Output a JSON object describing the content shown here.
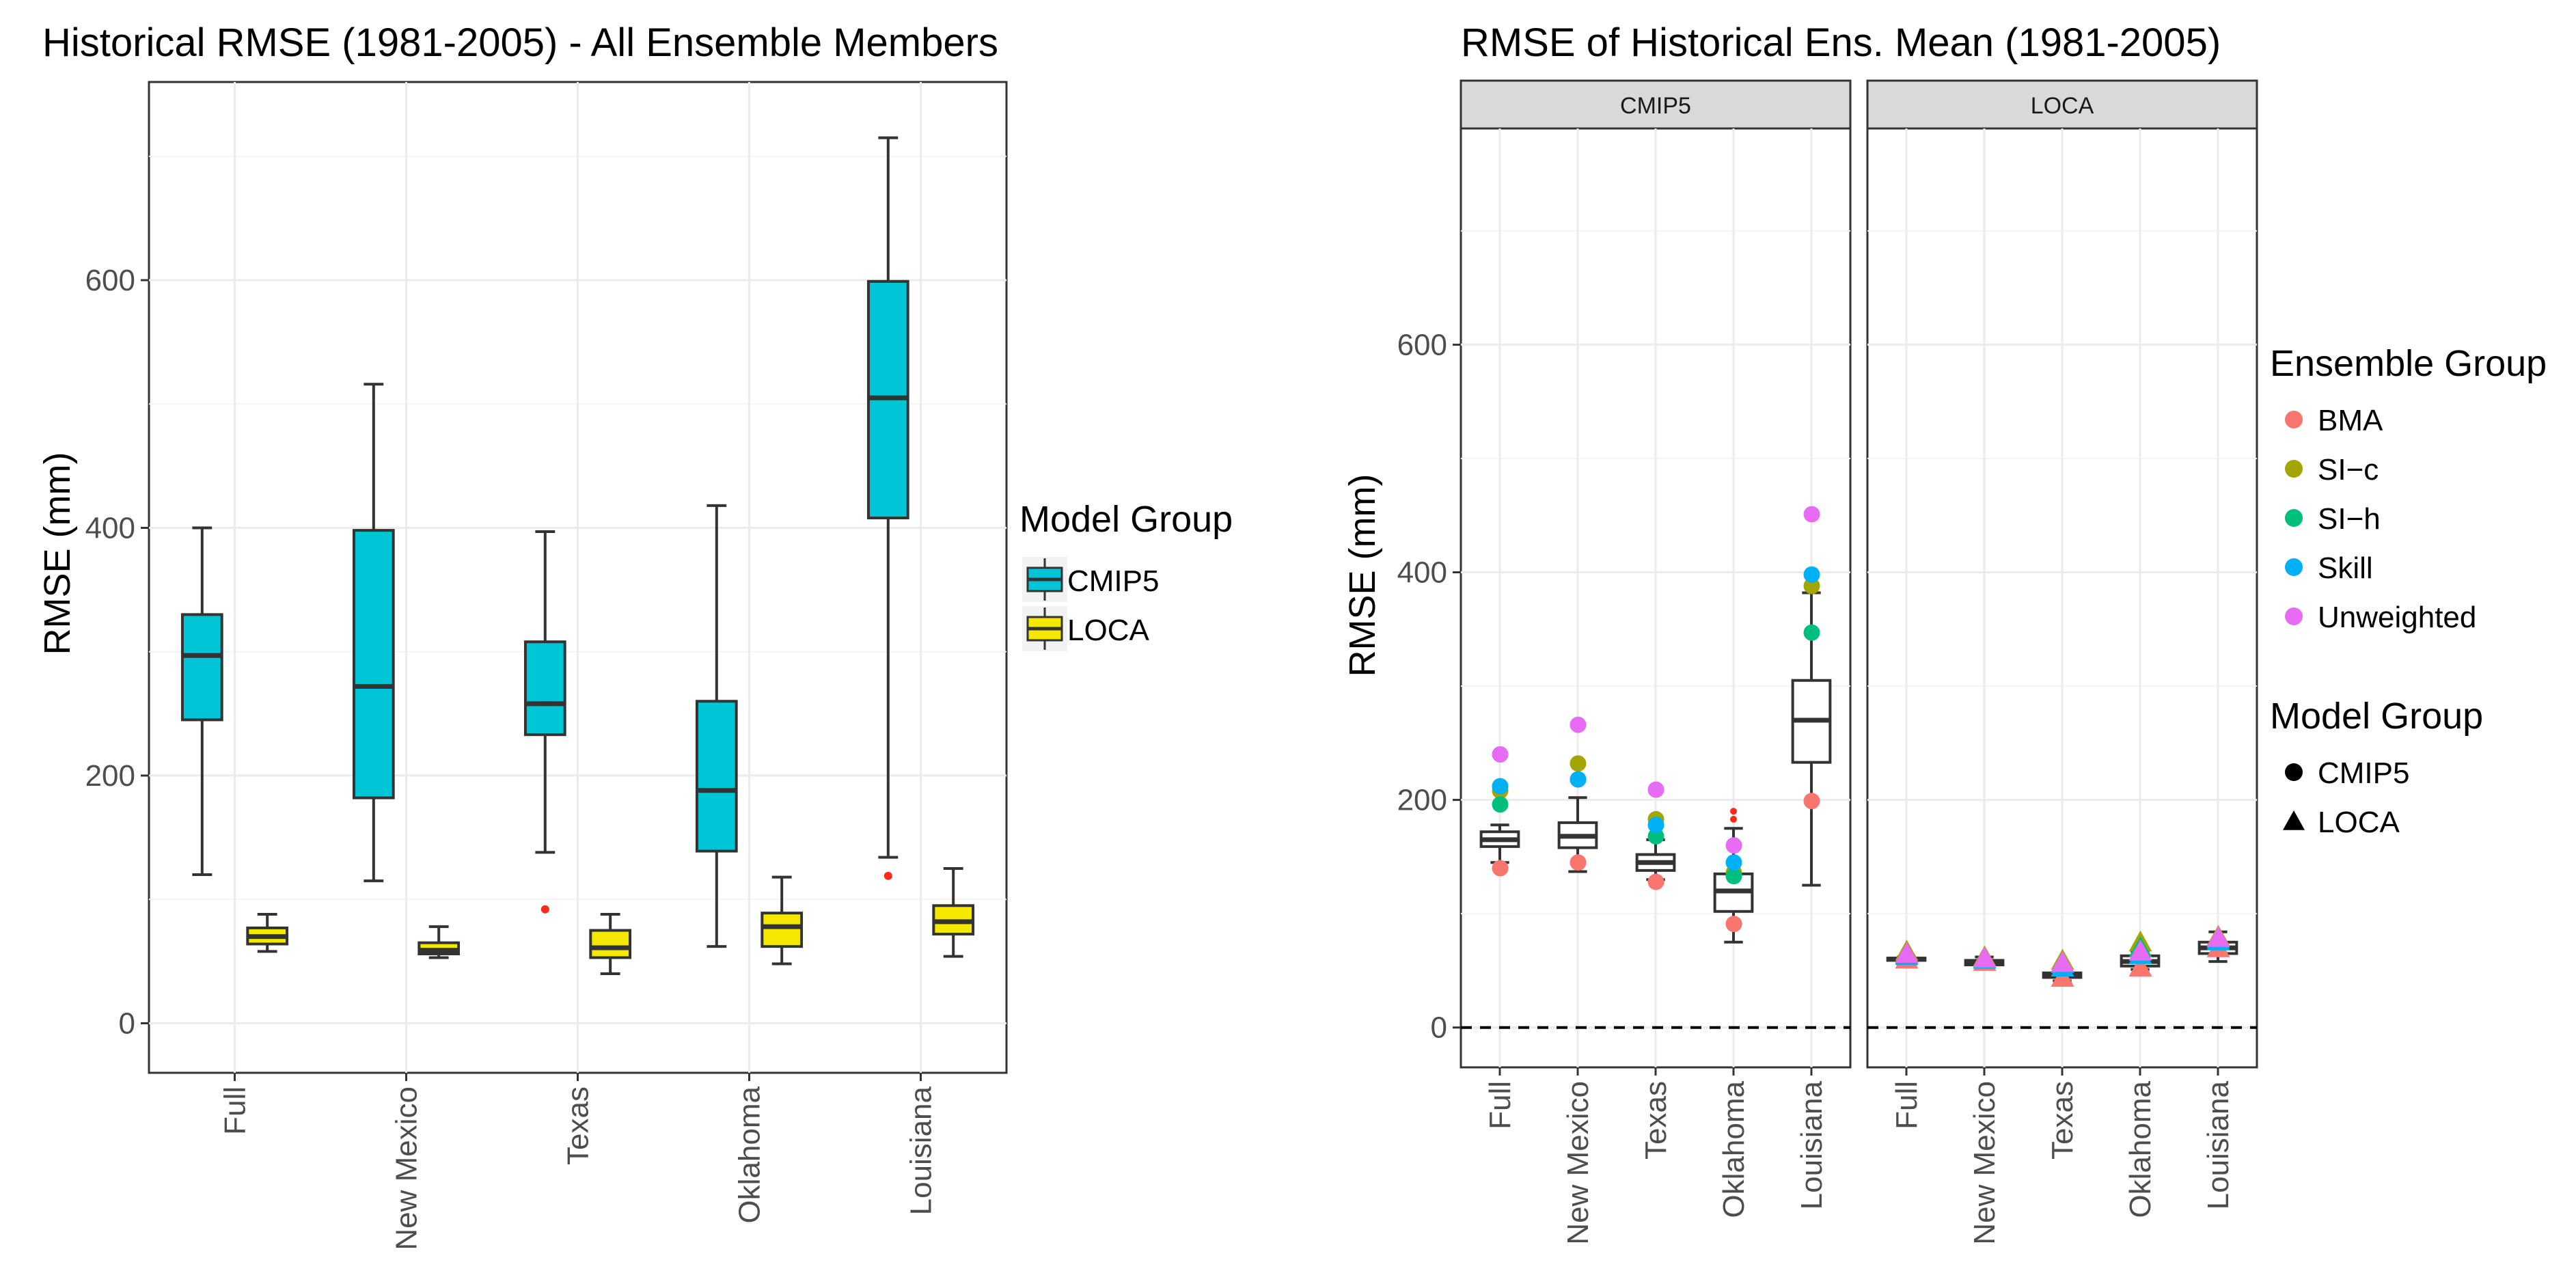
{
  "chart_data": [
    {
      "type": "boxplot",
      "title": "Historical RMSE (1981-2005) - All Ensemble Members",
      "xlabel": "",
      "ylabel": "RMSE (mm)",
      "ylim": [
        -40,
        760
      ],
      "yticks": [
        0,
        200,
        400,
        600
      ],
      "categories": [
        "Full",
        "New Mexico",
        "Texas",
        "Oklahoma",
        "Louisiana"
      ],
      "legend": {
        "title": "Model Group",
        "position": "right"
      },
      "series": [
        {
          "name": "CMIP5",
          "color": "#00C5D7",
          "boxes": [
            {
              "min": 120,
              "q1": 245,
              "median": 297,
              "q3": 330,
              "max": 400,
              "outliers": []
            },
            {
              "min": 115,
              "q1": 182,
              "median": 272,
              "q3": 398,
              "max": 516,
              "outliers": []
            },
            {
              "min": 138,
              "q1": 233,
              "median": 258,
              "q3": 308,
              "max": 397,
              "outliers": [
                92
              ]
            },
            {
              "min": 62,
              "q1": 139,
              "median": 188,
              "q3": 260,
              "max": 418,
              "outliers": []
            },
            {
              "min": 134,
              "q1": 408,
              "median": 505,
              "q3": 599,
              "max": 715,
              "outliers": [
                119
              ]
            }
          ]
        },
        {
          "name": "LOCA",
          "color": "#F4E800",
          "boxes": [
            {
              "min": 58,
              "q1": 64,
              "median": 70,
              "q3": 77,
              "max": 88,
              "outliers": []
            },
            {
              "min": 53,
              "q1": 56,
              "median": 59,
              "q3": 65,
              "max": 78,
              "outliers": []
            },
            {
              "min": 40,
              "q1": 53,
              "median": 61,
              "q3": 75,
              "max": 88,
              "outliers": []
            },
            {
              "min": 48,
              "q1": 62,
              "median": 78,
              "q3": 89,
              "max": 118,
              "outliers": []
            },
            {
              "min": 54,
              "q1": 72,
              "median": 82,
              "q3": 95,
              "max": 125,
              "outliers": []
            }
          ]
        }
      ]
    },
    {
      "type": "boxplot",
      "title": "RMSE of Historical Ens. Mean (1981-2005)",
      "xlabel": "",
      "ylabel": "RMSE (mm)",
      "ylim": [
        -35,
        790
      ],
      "yticks": [
        0,
        200,
        400,
        600
      ],
      "reference_line": 0,
      "categories": [
        "Full",
        "New Mexico",
        "Texas",
        "Oklahoma",
        "Louisiana"
      ],
      "panels": [
        {
          "strip": "CMIP5",
          "boxes": [
            {
              "min": 145,
              "q1": 159,
              "median": 165,
              "q3": 172,
              "max": 178,
              "outliers": []
            },
            {
              "min": 137,
              "q1": 158,
              "median": 168,
              "q3": 180,
              "max": 202,
              "outliers": []
            },
            {
              "min": 130,
              "q1": 138,
              "median": 145,
              "q3": 152,
              "max": 165,
              "outliers": []
            },
            {
              "min": 75,
              "q1": 102,
              "median": 120,
              "q3": 135,
              "max": 175,
              "outliers": [
                190,
                183
              ]
            },
            {
              "min": 125,
              "q1": 233,
              "median": 270,
              "q3": 305,
              "max": 382,
              "outliers": []
            }
          ],
          "points": {
            "BMA": [
              140,
              145,
              128,
              91,
              199
            ],
            "SI-c": [
              208,
              232,
              183,
              136,
              388
            ],
            "SI-h": [
              196,
              218,
              168,
              133,
              347
            ],
            "Skill": [
              212,
              218,
              178,
              145,
              398
            ],
            "Unweighted": [
              240,
              266,
              209,
              160,
              451
            ]
          }
        },
        {
          "strip": "LOCA",
          "boxes": [
            {
              "min": 58,
              "q1": 59,
              "median": 60,
              "q3": 61,
              "max": 62,
              "outliers": []
            },
            {
              "min": 53,
              "q1": 55,
              "median": 57,
              "q3": 59,
              "max": 62,
              "outliers": []
            },
            {
              "min": 41,
              "q1": 44,
              "median": 46,
              "q3": 48,
              "max": 51,
              "outliers": []
            },
            {
              "min": 51,
              "q1": 54,
              "median": 58,
              "q3": 63,
              "max": 67,
              "outliers": []
            },
            {
              "min": 58,
              "q1": 65,
              "median": 70,
              "q3": 75,
              "max": 84,
              "outliers": []
            }
          ],
          "points": {
            "BMA": [
              60,
              58,
              44,
              53,
              70
            ],
            "SI-c": [
              67,
              62,
              59,
              75,
              80
            ],
            "SI-h": [
              64,
              60,
              56,
              70,
              78
            ],
            "Skill": [
              63,
              60,
              53,
              64,
              76
            ],
            "Unweighted": [
              65,
              61,
              57,
              67,
              79
            ]
          }
        }
      ],
      "legends": [
        {
          "title": "Ensemble Group",
          "position": "right",
          "entries": [
            {
              "label": "BMA",
              "color": "#F8766D"
            },
            {
              "label": "SI−c",
              "color": "#A3A500"
            },
            {
              "label": "SI−h",
              "color": "#00BF7D"
            },
            {
              "label": "Skill",
              "color": "#00B0F6"
            },
            {
              "label": "Unweighted",
              "color": "#E76BF3"
            }
          ]
        },
        {
          "title": "Model Group",
          "position": "right",
          "entries": [
            {
              "label": "CMIP5",
              "shape": "circle"
            },
            {
              "label": "LOCA",
              "shape": "triangle"
            }
          ]
        }
      ]
    }
  ]
}
